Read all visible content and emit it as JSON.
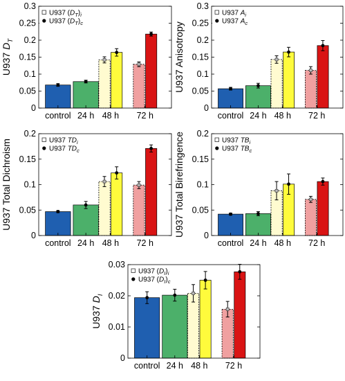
{
  "colors": {
    "control": "#1f5fb0",
    "h24": "#4cb06a",
    "h48_i": "#fffbd0",
    "h48_c": "#fffb3c",
    "h72_i": "#f0a0a0",
    "h72_c": "#d91414"
  },
  "categories": [
    "control",
    "24 h",
    "48 h",
    "72 h"
  ],
  "chart_data": [
    {
      "type": "bar",
      "ylabel_main": "U937 ",
      "ylabel_sym": "D",
      "ylabel_sub": "T",
      "ylim": [
        0,
        0.3
      ],
      "yticks": [
        "0",
        "0.05",
        "0.1",
        "0.15",
        "0.2",
        "0.25",
        "0.3"
      ],
      "legend": [
        {
          "marker": "open-square",
          "prefix": "U937 (",
          "sym": "D",
          "sub": "T",
          "close": ")",
          "sub2": "i"
        },
        {
          "marker": "filled-circle",
          "prefix": "U937 (",
          "sym": "D",
          "sub": "T",
          "close": ")",
          "sub2": "c"
        }
      ],
      "values": {
        "control": 0.068,
        "h24": 0.078,
        "h48_i": 0.142,
        "h48_c": 0.164,
        "h72_i": 0.129,
        "h72_c": 0.218
      },
      "errors": {
        "control": 0.004,
        "h24": 0.004,
        "h48_i": 0.009,
        "h48_c": 0.011,
        "h72_i": 0.007,
        "h72_c": 0.006
      }
    },
    {
      "type": "bar",
      "ylabel_main": "U937 Anisotropy",
      "ylabel_sym": "",
      "ylabel_sub": "",
      "ylim": [
        0,
        0.3
      ],
      "yticks": [
        "0",
        "0.05",
        "0.1",
        "0.15",
        "0.2",
        "0.25",
        "0.3"
      ],
      "legend": [
        {
          "marker": "open-square",
          "prefix": "U937 ",
          "sym": "A",
          "sub": "i",
          "close": "",
          "sub2": ""
        },
        {
          "marker": "filled-circle",
          "prefix": "U937 ",
          "sym": "A",
          "sub": "c",
          "close": "",
          "sub2": ""
        }
      ],
      "values": {
        "control": 0.057,
        "h24": 0.066,
        "h48_i": 0.143,
        "h48_c": 0.165,
        "h72_i": 0.111,
        "h72_c": 0.184
      },
      "errors": {
        "control": 0.004,
        "h24": 0.007,
        "h48_i": 0.011,
        "h48_c": 0.014,
        "h72_i": 0.011,
        "h72_c": 0.015
      }
    },
    {
      "type": "bar",
      "ylabel_main": "U937 Total Dichroism",
      "ylabel_sym": "",
      "ylabel_sub": "",
      "ylim": [
        0,
        0.2
      ],
      "yticks": [
        "0",
        "0.05",
        "0.1",
        "0.15",
        "0.2"
      ],
      "legend": [
        {
          "marker": "open-square",
          "prefix": "U937 ",
          "sym": "TD",
          "sub": "i",
          "close": "",
          "sub2": ""
        },
        {
          "marker": "filled-circle",
          "prefix": "U937 ",
          "sym": "TD",
          "sub": "c",
          "close": "",
          "sub2": ""
        }
      ],
      "values": {
        "control": 0.047,
        "h24": 0.06,
        "h48_i": 0.106,
        "h48_c": 0.123,
        "h72_i": 0.099,
        "h72_c": 0.171
      },
      "errors": {
        "control": 0.002,
        "h24": 0.007,
        "h48_i": 0.01,
        "h48_c": 0.012,
        "h72_i": 0.007,
        "h72_c": 0.007
      }
    },
    {
      "type": "bar",
      "ylabel_main": "U937 Total Birefringence",
      "ylabel_sym": "",
      "ylabel_sub": "",
      "ylim": [
        0,
        0.2
      ],
      "yticks": [
        "0",
        "0.05",
        "0.1",
        "0.15",
        "0.2"
      ],
      "legend": [
        {
          "marker": "open-square",
          "prefix": "U937 ",
          "sym": "TB",
          "sub": "i",
          "close": "",
          "sub2": ""
        },
        {
          "marker": "filled-circle",
          "prefix": "U937 ",
          "sym": "TB",
          "sub": "c",
          "close": "",
          "sub2": ""
        }
      ],
      "values": {
        "control": 0.042,
        "h24": 0.043,
        "h48_i": 0.088,
        "h48_c": 0.101,
        "h72_i": 0.071,
        "h72_c": 0.106
      },
      "errors": {
        "control": 0.002,
        "h24": 0.004,
        "h48_i": 0.018,
        "h48_c": 0.02,
        "h72_i": 0.006,
        "h72_c": 0.007
      }
    },
    {
      "type": "bar",
      "ylabel_main": "U937  ",
      "ylabel_sym": "D",
      "ylabel_sub": "I",
      "ylim": [
        0,
        0.03
      ],
      "yticks": [
        "0",
        "0.01",
        "0.02",
        "0.03"
      ],
      "legend": [
        {
          "marker": "open-square",
          "prefix": "U937 (",
          "sym": "D",
          "sub": "I",
          "close": ")",
          "sub2": "i"
        },
        {
          "marker": "filled-circle",
          "prefix": "U937 (",
          "sym": "D",
          "sub": "I",
          "close": ")",
          "sub2": "c"
        }
      ],
      "values": {
        "control": 0.0194,
        "h24": 0.0202,
        "h48_i": 0.0208,
        "h48_c": 0.025,
        "h72_i": 0.0157,
        "h72_c": 0.0277
      },
      "errors": {
        "control": 0.0019,
        "h24": 0.0019,
        "h48_i": 0.0028,
        "h48_c": 0.0028,
        "h72_i": 0.0025,
        "h72_c": 0.0024
      }
    }
  ]
}
